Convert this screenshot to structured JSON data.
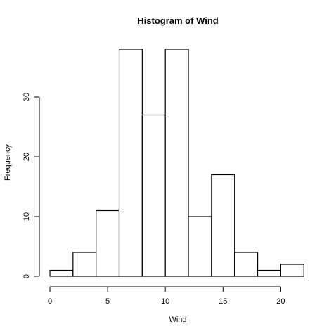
{
  "chart_data": {
    "type": "bar",
    "title": "Histogram of Wind",
    "xlabel": "Wind",
    "ylabel": "Frequency",
    "bins": [
      {
        "start": 0,
        "end": 2,
        "count": 1
      },
      {
        "start": 2,
        "end": 4,
        "count": 4
      },
      {
        "start": 4,
        "end": 6,
        "count": 11
      },
      {
        "start": 6,
        "end": 8,
        "count": 38
      },
      {
        "start": 8,
        "end": 10,
        "count": 27
      },
      {
        "start": 10,
        "end": 12,
        "count": 38
      },
      {
        "start": 12,
        "end": 14,
        "count": 10
      },
      {
        "start": 14,
        "end": 16,
        "count": 17
      },
      {
        "start": 16,
        "end": 18,
        "count": 4
      },
      {
        "start": 18,
        "end": 20,
        "count": 1
      },
      {
        "start": 20,
        "end": 22,
        "count": 2
      }
    ],
    "xticks": [
      0,
      5,
      10,
      15,
      20
    ],
    "yticks": [
      0,
      10,
      20,
      30
    ],
    "xlim": [
      0,
      22
    ],
    "ylim": [
      0,
      38
    ],
    "grid": false,
    "colors": {
      "bar_fill": "#ffffff",
      "bar_stroke": "#000000"
    }
  }
}
